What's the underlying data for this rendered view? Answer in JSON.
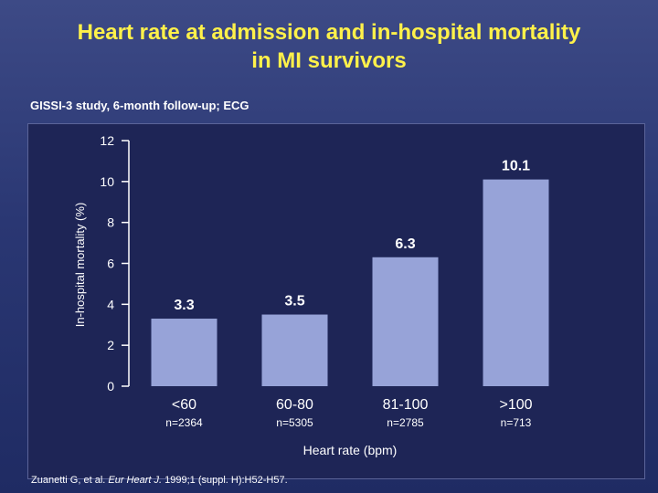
{
  "slide": {
    "title_line1": "Heart rate at admission and in-hospital mortality",
    "title_line2": "in MI survivors",
    "subtitle": "GISSI-3 study, 6-month follow-up; ECG",
    "citation_prefix": "Zuanetti G, et al. ",
    "citation_journal": "Eur Heart J.",
    "citation_suffix": " 1999;1 (suppl. H):H52-H57."
  },
  "colors": {
    "title": "#fff14a",
    "bar": "#97a3d8",
    "text": "#ffffff",
    "panel": "#1e2556"
  },
  "chart_data": {
    "type": "bar",
    "title": "",
    "xlabel": "Heart rate (bpm)",
    "ylabel": "In-hospital mortality (%)",
    "ylim": [
      0,
      12
    ],
    "yticks": [
      0,
      2,
      4,
      6,
      8,
      10,
      12
    ],
    "categories": [
      "<60",
      "60-80",
      "81-100",
      ">100"
    ],
    "sample_sizes": [
      "n=2364",
      "n=5305",
      "n=2785",
      "n=713"
    ],
    "values": [
      3.3,
      3.5,
      6.3,
      10.1
    ],
    "value_labels": [
      "3.3",
      "3.5",
      "6.3",
      "10.1"
    ],
    "grid": false,
    "legend": "none"
  }
}
